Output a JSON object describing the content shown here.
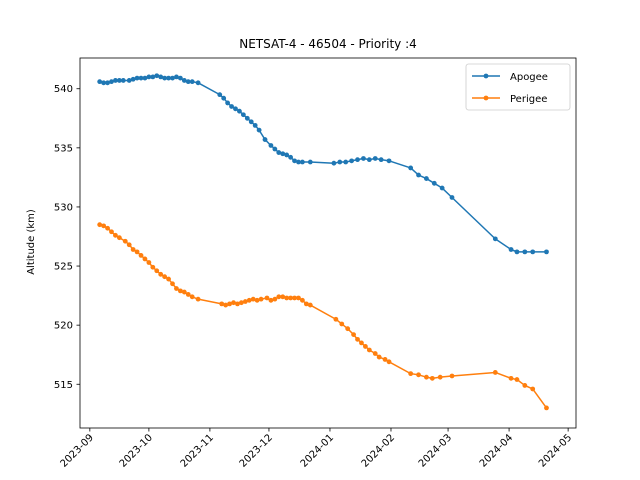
{
  "chart_data": {
    "type": "line",
    "title": "NETSAT-4 - 46504 - Priority :4",
    "xlabel": "",
    "ylabel": "Altitude (km)",
    "x_ticks": [
      "2023-09",
      "2023-10",
      "2023-11",
      "2023-12",
      "2024-01",
      "2024-02",
      "2024-03",
      "2024-04",
      "2024-05"
    ],
    "y_ticks": [
      515,
      520,
      525,
      530,
      535,
      540
    ],
    "xlim": [
      "2023-08-27",
      "2024-05-05"
    ],
    "ylim": [
      511.3,
      542.6
    ],
    "legend_position": "upper right",
    "grid": false,
    "series": [
      {
        "name": "Apogee",
        "color": "#1f77b4",
        "points": [
          [
            "2023-09-06",
            540.6
          ],
          [
            "2023-09-08",
            540.5
          ],
          [
            "2023-09-10",
            540.5
          ],
          [
            "2023-09-12",
            540.6
          ],
          [
            "2023-09-14",
            540.7
          ],
          [
            "2023-09-16",
            540.7
          ],
          [
            "2023-09-18",
            540.7
          ],
          [
            "2023-09-21",
            540.7
          ],
          [
            "2023-09-23",
            540.8
          ],
          [
            "2023-09-25",
            540.9
          ],
          [
            "2023-09-27",
            540.9
          ],
          [
            "2023-09-29",
            540.9
          ],
          [
            "2023-10-01",
            541.0
          ],
          [
            "2023-10-03",
            541.0
          ],
          [
            "2023-10-05",
            541.1
          ],
          [
            "2023-10-07",
            541.0
          ],
          [
            "2023-10-09",
            540.9
          ],
          [
            "2023-10-11",
            540.9
          ],
          [
            "2023-10-13",
            540.9
          ],
          [
            "2023-10-15",
            541.0
          ],
          [
            "2023-10-17",
            540.9
          ],
          [
            "2023-10-19",
            540.7
          ],
          [
            "2023-10-21",
            540.6
          ],
          [
            "2023-10-23",
            540.6
          ],
          [
            "2023-10-26",
            540.5
          ],
          [
            "2023-11-06",
            539.5
          ],
          [
            "2023-11-08",
            539.2
          ],
          [
            "2023-11-10",
            538.8
          ],
          [
            "2023-11-12",
            538.5
          ],
          [
            "2023-11-14",
            538.3
          ],
          [
            "2023-11-16",
            538.1
          ],
          [
            "2023-11-18",
            537.8
          ],
          [
            "2023-11-20",
            537.5
          ],
          [
            "2023-11-22",
            537.2
          ],
          [
            "2023-11-24",
            536.9
          ],
          [
            "2023-11-26",
            536.5
          ],
          [
            "2023-11-29",
            535.7
          ],
          [
            "2023-12-02",
            535.2
          ],
          [
            "2023-12-04",
            534.9
          ],
          [
            "2023-12-06",
            534.6
          ],
          [
            "2023-12-08",
            534.5
          ],
          [
            "2023-12-10",
            534.4
          ],
          [
            "2023-12-12",
            534.2
          ],
          [
            "2023-12-14",
            533.9
          ],
          [
            "2023-12-16",
            533.8
          ],
          [
            "2023-12-18",
            533.8
          ],
          [
            "2023-12-22",
            533.8
          ],
          [
            "2024-01-03",
            533.7
          ],
          [
            "2024-01-06",
            533.8
          ],
          [
            "2024-01-09",
            533.8
          ],
          [
            "2024-01-12",
            533.9
          ],
          [
            "2024-01-15",
            534.0
          ],
          [
            "2024-01-18",
            534.1
          ],
          [
            "2024-01-21",
            534.0
          ],
          [
            "2024-01-24",
            534.1
          ],
          [
            "2024-01-27",
            534.0
          ],
          [
            "2024-01-31",
            533.9
          ],
          [
            "2024-02-11",
            533.3
          ],
          [
            "2024-02-15",
            532.7
          ],
          [
            "2024-02-19",
            532.4
          ],
          [
            "2024-02-23",
            532.0
          ],
          [
            "2024-02-27",
            531.6
          ],
          [
            "2024-03-03",
            530.8
          ],
          [
            "2024-03-25",
            527.3
          ],
          [
            "2024-04-02",
            526.4
          ],
          [
            "2024-04-05",
            526.2
          ],
          [
            "2024-04-09",
            526.2
          ],
          [
            "2024-04-13",
            526.2
          ],
          [
            "2024-04-20",
            526.2
          ]
        ]
      },
      {
        "name": "Perigee",
        "color": "#ff7f0e",
        "points": [
          [
            "2023-09-06",
            528.5
          ],
          [
            "2023-09-08",
            528.4
          ],
          [
            "2023-09-10",
            528.2
          ],
          [
            "2023-09-12",
            527.9
          ],
          [
            "2023-09-14",
            527.6
          ],
          [
            "2023-09-16",
            527.4
          ],
          [
            "2023-09-19",
            527.1
          ],
          [
            "2023-09-21",
            526.8
          ],
          [
            "2023-09-23",
            526.4
          ],
          [
            "2023-09-25",
            526.2
          ],
          [
            "2023-09-27",
            525.9
          ],
          [
            "2023-09-29",
            525.6
          ],
          [
            "2023-10-01",
            525.3
          ],
          [
            "2023-10-03",
            524.9
          ],
          [
            "2023-10-05",
            524.6
          ],
          [
            "2023-10-07",
            524.3
          ],
          [
            "2023-10-09",
            524.1
          ],
          [
            "2023-10-11",
            523.9
          ],
          [
            "2023-10-13",
            523.5
          ],
          [
            "2023-10-15",
            523.1
          ],
          [
            "2023-10-17",
            522.9
          ],
          [
            "2023-10-19",
            522.8
          ],
          [
            "2023-10-21",
            522.6
          ],
          [
            "2023-10-23",
            522.4
          ],
          [
            "2023-10-26",
            522.2
          ],
          [
            "2023-11-07",
            521.8
          ],
          [
            "2023-11-09",
            521.7
          ],
          [
            "2023-11-11",
            521.8
          ],
          [
            "2023-11-13",
            521.9
          ],
          [
            "2023-11-15",
            521.8
          ],
          [
            "2023-11-17",
            521.9
          ],
          [
            "2023-11-19",
            522.0
          ],
          [
            "2023-11-21",
            522.1
          ],
          [
            "2023-11-23",
            522.2
          ],
          [
            "2023-11-25",
            522.1
          ],
          [
            "2023-11-27",
            522.2
          ],
          [
            "2023-11-30",
            522.3
          ],
          [
            "2023-12-02",
            522.1
          ],
          [
            "2023-12-04",
            522.2
          ],
          [
            "2023-12-06",
            522.4
          ],
          [
            "2023-12-08",
            522.4
          ],
          [
            "2023-12-10",
            522.3
          ],
          [
            "2023-12-12",
            522.3
          ],
          [
            "2023-12-14",
            522.3
          ],
          [
            "2023-12-16",
            522.3
          ],
          [
            "2023-12-18",
            522.1
          ],
          [
            "2023-12-20",
            521.8
          ],
          [
            "2023-12-22",
            521.7
          ],
          [
            "2024-01-04",
            520.5
          ],
          [
            "2024-01-07",
            520.1
          ],
          [
            "2024-01-10",
            519.7
          ],
          [
            "2024-01-13",
            519.2
          ],
          [
            "2024-01-15",
            518.8
          ],
          [
            "2024-01-17",
            518.5
          ],
          [
            "2024-01-19",
            518.2
          ],
          [
            "2024-01-21",
            517.9
          ],
          [
            "2024-01-24",
            517.6
          ],
          [
            "2024-01-26",
            517.3
          ],
          [
            "2024-01-29",
            517.1
          ],
          [
            "2024-01-31",
            516.9
          ],
          [
            "2024-02-11",
            515.9
          ],
          [
            "2024-02-15",
            515.8
          ],
          [
            "2024-02-19",
            515.6
          ],
          [
            "2024-02-22",
            515.5
          ],
          [
            "2024-02-26",
            515.6
          ],
          [
            "2024-03-03",
            515.7
          ],
          [
            "2024-03-25",
            516.0
          ],
          [
            "2024-04-02",
            515.5
          ],
          [
            "2024-04-05",
            515.4
          ],
          [
            "2024-04-09",
            514.9
          ],
          [
            "2024-04-13",
            514.6
          ],
          [
            "2024-04-20",
            513.0
          ]
        ]
      }
    ]
  }
}
